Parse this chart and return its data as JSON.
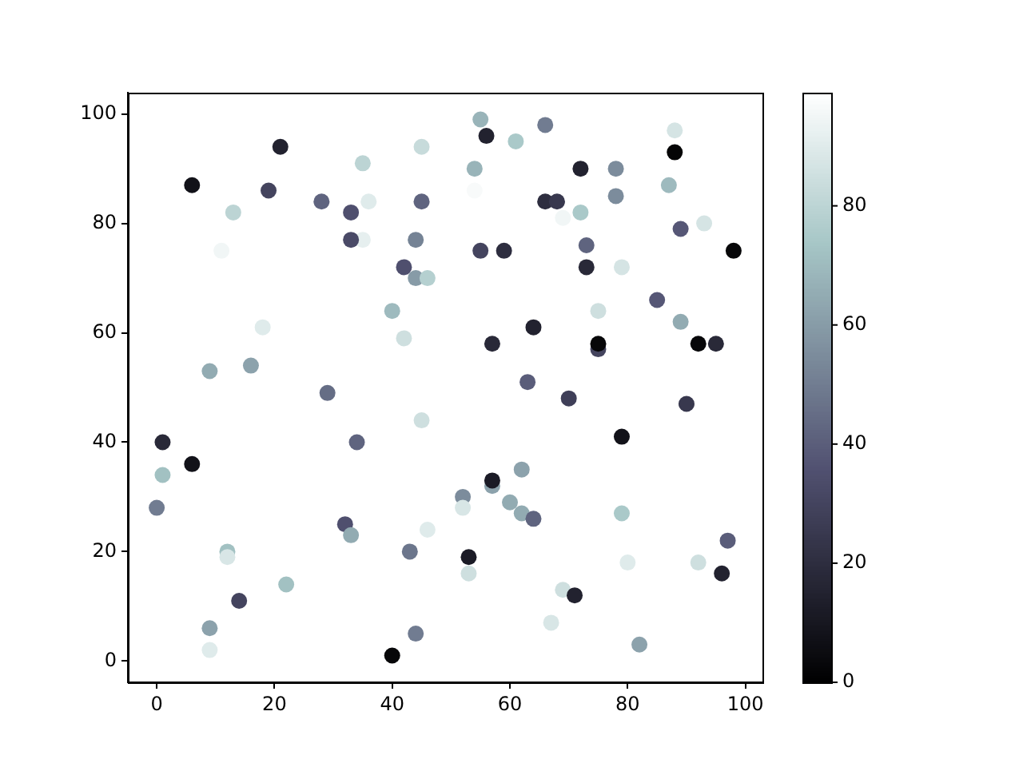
{
  "chart_data": {
    "type": "scatter",
    "marker": "circle",
    "x": [
      21,
      35,
      45,
      6,
      19,
      28,
      36,
      45,
      13,
      33,
      11,
      35,
      33,
      44,
      42,
      44,
      46,
      40,
      42,
      18,
      9,
      16,
      29,
      55,
      56,
      61,
      66,
      88,
      88,
      54,
      72,
      78,
      54,
      87,
      66,
      68,
      78,
      69,
      72,
      93,
      89,
      55,
      59,
      98,
      73,
      73,
      79,
      75,
      85,
      89,
      64,
      57,
      75,
      75,
      92,
      95,
      63,
      45,
      1,
      34,
      6,
      1,
      0,
      32,
      33,
      46,
      43,
      12,
      12,
      22,
      14,
      9,
      9,
      40,
      44,
      70,
      90,
      79,
      62,
      57,
      57,
      52,
      52,
      60,
      62,
      64,
      79,
      97,
      53,
      53,
      80,
      92,
      96,
      69,
      71,
      67,
      82
    ],
    "values": [
      94,
      91,
      94,
      87,
      86,
      84,
      84,
      84,
      82,
      82,
      75,
      77,
      77,
      77,
      72,
      70,
      70,
      64,
      59,
      61,
      53,
      54,
      49,
      99,
      96,
      95,
      98,
      97,
      93,
      90,
      90,
      90,
      86,
      87,
      84,
      84,
      85,
      81,
      82,
      80,
      79,
      75,
      75,
      75,
      76,
      72,
      72,
      64,
      66,
      62,
      61,
      58,
      57,
      58,
      58,
      58,
      51,
      44,
      40,
      40,
      36,
      34,
      28,
      25,
      23,
      24,
      20,
      20,
      19,
      14,
      11,
      6,
      2,
      1,
      5,
      48,
      47,
      41,
      35,
      32,
      33,
      30,
      28,
      29,
      27,
      26,
      27,
      22,
      19,
      16,
      18,
      18,
      16,
      13,
      12,
      7,
      3
    ],
    "cvalues": [
      15,
      80,
      83,
      8,
      30,
      42,
      90,
      42,
      80,
      35,
      95,
      92,
      33,
      52,
      35,
      60,
      78,
      70,
      85,
      90,
      65,
      62,
      45,
      68,
      15,
      75,
      50,
      87,
      2,
      68,
      15,
      55,
      97,
      70,
      20,
      25,
      55,
      95,
      75,
      87,
      38,
      30,
      20,
      3,
      42,
      18,
      87,
      85,
      38,
      65,
      15,
      18,
      30,
      3,
      3,
      18,
      40,
      85,
      18,
      42,
      8,
      72,
      50,
      35,
      65,
      90,
      48,
      72,
      88,
      72,
      30,
      62,
      90,
      3,
      50,
      28,
      25,
      8,
      62,
      62,
      12,
      55,
      88,
      65,
      65,
      42,
      75,
      40,
      12,
      85,
      90,
      85,
      15,
      85,
      15,
      88,
      62
    ],
    "xlim": [
      -4.9,
      102.9
    ],
    "ylim": [
      -3.9,
      103.9
    ],
    "xticks": [
      0,
      20,
      40,
      60,
      80,
      100
    ],
    "yticks": [
      0,
      20,
      40,
      60,
      80,
      100
    ],
    "clim": [
      0,
      99
    ],
    "cticks": [
      0,
      20,
      40,
      60,
      80
    ]
  }
}
